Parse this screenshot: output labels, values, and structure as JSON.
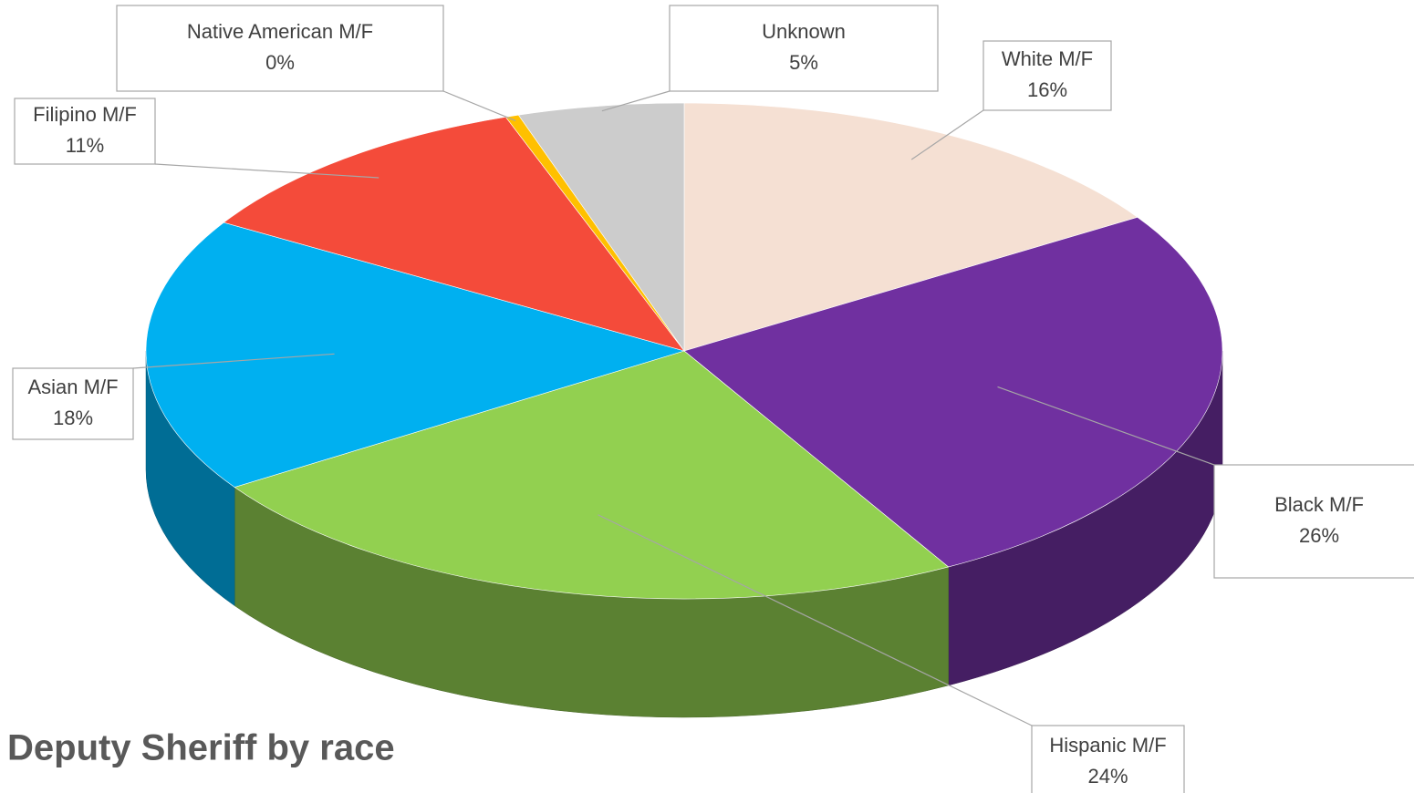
{
  "chart_data": {
    "type": "pie3d",
    "title": "Deputy Sheriff by race",
    "categories": [
      "White M/F",
      "Black M/F",
      "Hispanic M/F",
      "Asian M/F",
      "Filipino M/F",
      "Native American M/F",
      "Unknown"
    ],
    "values": [
      16,
      26,
      24,
      18,
      11,
      0.4,
      5
    ],
    "value_labels": [
      "16%",
      "26%",
      "24%",
      "18%",
      "11%",
      "0%",
      "5%"
    ],
    "colors": [
      "#f5e0d3",
      "#7030a0",
      "#92d050",
      "#00b0f0",
      "#f44b3a",
      "#ffc000",
      "#cccccc"
    ]
  }
}
